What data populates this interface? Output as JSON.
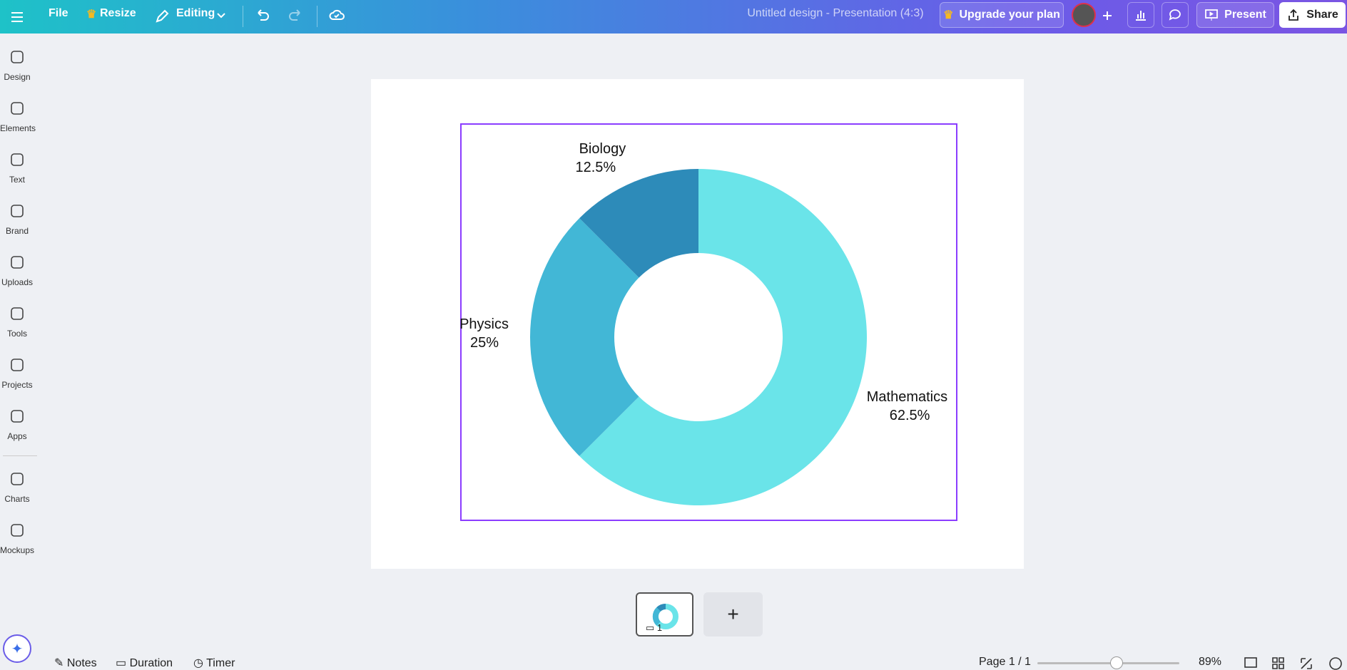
{
  "top_bar": {
    "menu": "File",
    "resize": "Resize",
    "mode": "Editing",
    "document_title": "Untitled design - Presentation (4:3)",
    "upgrade": "Upgrade your plan",
    "present": "Present",
    "share": "Share"
  },
  "sidebar": [
    "Design",
    "Elements",
    "Text",
    "Brand",
    "Uploads",
    "Tools",
    "Projects",
    "Apps",
    "Charts",
    "Mockups"
  ],
  "chart_data": {
    "type": "donut",
    "categories": [
      "Mathematics",
      "Physics",
      "Biology"
    ],
    "values": [
      62.5,
      25,
      12.5
    ],
    "value_labels": [
      "62.5%",
      "25%",
      "12.5%"
    ],
    "colors": [
      "#6ae4e9",
      "#42b7d6",
      "#2d8bb9"
    ]
  },
  "thumbnail": {
    "page_number": "1"
  },
  "bottom_bar": {
    "notes": "Notes",
    "duration": "Duration",
    "timer": "Timer",
    "page": "Page 1 / 1",
    "zoom": "89%"
  }
}
